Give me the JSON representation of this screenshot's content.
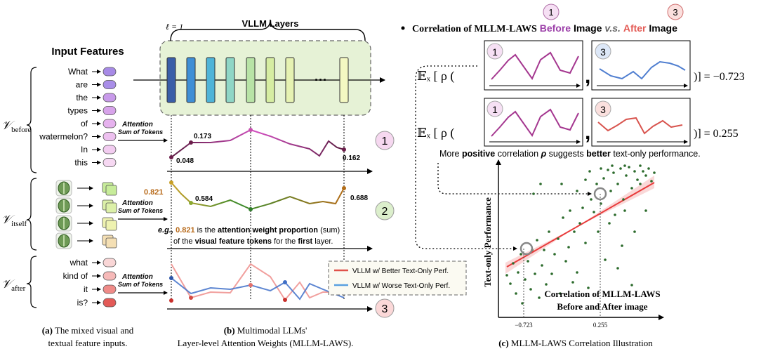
{
  "panel_a": {
    "title": "Input Features",
    "group_before": "𝒱before",
    "group_itself": "𝒱itself",
    "group_after": "𝒱after",
    "before_words": [
      "What",
      "are",
      "the",
      "types",
      "of",
      "watermelon?",
      "In",
      "this"
    ],
    "after_words": [
      "what",
      "kind of",
      "it",
      "is?"
    ],
    "caption_bold": "(a)",
    "caption_line1": "The mixed visual and",
    "caption_line2": "textual feature inputs."
  },
  "panel_b": {
    "layer_label": "ℓ = 1",
    "vllm_layers_label": "VLLM Layers",
    "ellipsis": "···",
    "attention_label": "Attention",
    "sum_label": "Sum of Tokens",
    "series1_values": [
      "0.048",
      "0.173",
      "0.162"
    ],
    "series2_values": [
      "0.821",
      "0.584",
      "0.688"
    ],
    "example_prefix": "e.g.,",
    "example_value": "0.821",
    "example_mid1": "is the",
    "example_bold1": "attention weight proportion",
    "example_paren": "(sum)",
    "example_line2a": "of the",
    "example_bold2": "visual feature tokens",
    "example_line2b": "for the",
    "example_bold3": "first",
    "example_line2c": "layer.",
    "legend_better": "VLLM w/ Better Text-Only Perf.",
    "legend_worse": "VLLM w/ Worse Text-Only Perf.",
    "markers": [
      "1",
      "2",
      "3"
    ],
    "caption_bold": "(b)",
    "caption_line1": "Multimodal LLMs'",
    "caption_line2": "Layer-level Attention Weights (MLLM-LAWS)."
  },
  "panel_c": {
    "header_prefix": "Correlation of MLLM-LAWS",
    "header_before": "Before",
    "header_image1": "Image",
    "header_vs": "v.s.",
    "header_after": "After",
    "header_image2": "Image",
    "eq_prefix": "𝔼ₓ [ ρ (",
    "eq1_result": ")] = −0.723",
    "eq2_result": ")] = 0.255",
    "comma": ",",
    "note_pre": "More",
    "note_bold1": "positive",
    "note_mid": "correlation",
    "note_rho": "ρ",
    "note_mid2": "suggests",
    "note_bold2": "better",
    "note_post": "text-only performance.",
    "y_axis_label": "Text-only Performance",
    "scatter_caption1": "Correlation of MLLM-LAWS",
    "scatter_caption2": "Before and After image",
    "x_tick1": "−0.723",
    "x_tick2": "0.255",
    "caption_bold": "(c)",
    "caption_text": "MLLM-LAWS Correlation Illustration"
  },
  "colors": {
    "layer_dark": "#3a5ea8",
    "layer_green_bg": "#e6f2d6",
    "pink": "#c94fb0",
    "maroon": "#6b1d4a",
    "green": "#2f7d2a",
    "orange": "#b86a1a",
    "red": "#e0524a",
    "blue": "#3f6fc6",
    "scatter_dot": "#2c6b2c",
    "fit_line": "#e83b3b"
  }
}
